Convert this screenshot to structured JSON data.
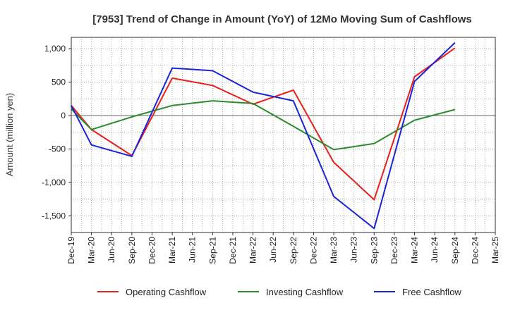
{
  "chart_data": {
    "type": "line",
    "title": "[7953]  Trend of Change in Amount (YoY) of 12Mo Moving Sum of Cashflows",
    "xlabel": "",
    "ylabel": "Amount (million yen)",
    "ylim": [
      -1750,
      1170
    ],
    "yticks": [
      1000,
      500,
      0,
      -500,
      -1000,
      -1500
    ],
    "ytick_labels": [
      "1,000",
      "500",
      "0",
      "-500",
      "-1,000",
      "-1,500"
    ],
    "categories": [
      "Dec-19",
      "Mar-20",
      "Jun-20",
      "Sep-20",
      "Dec-20",
      "Mar-21",
      "Jun-21",
      "Sep-21",
      "Dec-21",
      "Mar-22",
      "Jun-22",
      "Sep-22",
      "Dec-22",
      "Mar-23",
      "Jun-23",
      "Sep-23",
      "Dec-23",
      "Mar-24",
      "Jun-24",
      "Sep-24",
      "Dec-24",
      "Mar-25"
    ],
    "grid": true,
    "legend_position": "bottom",
    "series": [
      {
        "name": "Operating Cashflow",
        "color": "#e8201c",
        "x": [
          "Dec-19",
          "Mar-20",
          "Sep-20",
          "Mar-21",
          "Sep-21",
          "Mar-22",
          "Sep-22",
          "Mar-23",
          "Sep-23",
          "Mar-24",
          "Sep-24"
        ],
        "values": [
          150,
          -210,
          -600,
          560,
          450,
          170,
          380,
          -700,
          -1260,
          580,
          1010
        ]
      },
      {
        "name": "Investing Cashflow",
        "color": "#2d8a2d",
        "x": [
          "Dec-19",
          "Mar-20",
          "Sep-20",
          "Mar-21",
          "Sep-21",
          "Mar-22",
          "Sep-22",
          "Mar-23",
          "Sep-23",
          "Mar-24",
          "Sep-24"
        ],
        "values": [
          100,
          -210,
          -20,
          150,
          220,
          180,
          -160,
          -510,
          -420,
          -70,
          90
        ]
      },
      {
        "name": "Free Cashflow",
        "color": "#1a24d6",
        "x": [
          "Dec-19",
          "Mar-20",
          "Sep-20",
          "Mar-21",
          "Sep-21",
          "Mar-22",
          "Sep-22",
          "Mar-23",
          "Sep-23",
          "Mar-24",
          "Sep-24"
        ],
        "values": [
          150,
          -440,
          -610,
          710,
          670,
          350,
          220,
          -1210,
          -1690,
          510,
          1090
        ]
      }
    ]
  }
}
